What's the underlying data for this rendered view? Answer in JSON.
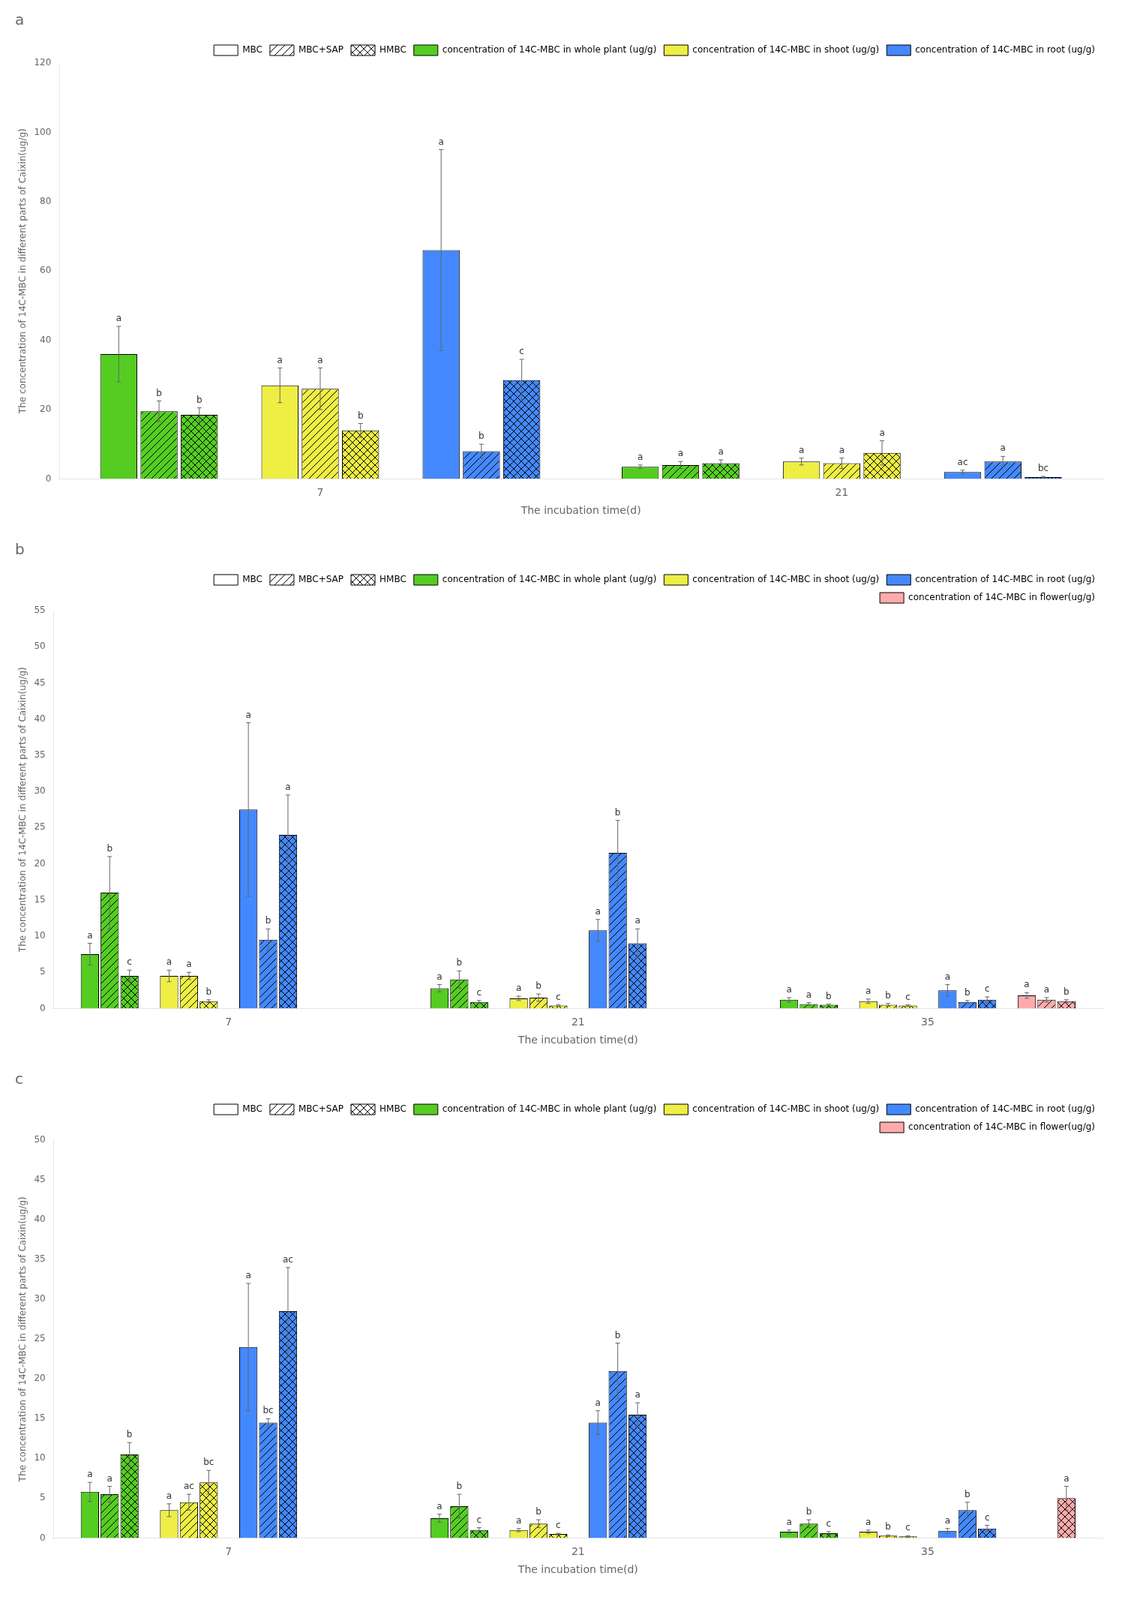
{
  "chart_data": [
    {
      "type": "bar",
      "title": "a",
      "xlabel": "The incubation time(d)",
      "ylabel": "The concentration of 14C-MBC in different parts of Caixin(ug/g)",
      "categories": [
        "7",
        "21"
      ],
      "treatments": [
        "MBC",
        "MBC+SAP",
        "HMBC"
      ],
      "series": [
        {
          "name": "concentration of 14C-MBC in whole plant (ug/g)",
          "color": "#55cc22",
          "values": [
            [
              36.0,
              19.5,
              18.5
            ],
            [
              3.5,
              4.0,
              4.5
            ]
          ],
          "errors": [
            [
              8.0,
              3.0,
              2.0
            ],
            [
              0.5,
              1.0,
              1.0
            ]
          ],
          "letters": [
            [
              "a",
              "b",
              "b"
            ],
            [
              "a",
              "a",
              "a"
            ]
          ]
        },
        {
          "name": "concentration of 14C-MBC in shoot (ug/g)",
          "color": "#eeee44",
          "values": [
            [
              27.0,
              26.0,
              14.0
            ],
            [
              5.0,
              4.5,
              7.5
            ]
          ],
          "errors": [
            [
              5.0,
              6.0,
              2.0
            ],
            [
              1.0,
              1.5,
              3.5
            ]
          ],
          "letters": [
            [
              "a",
              "a",
              "b"
            ],
            [
              "a",
              "a",
              "a"
            ]
          ]
        },
        {
          "name": "concentration of 14C-MBC in root (ug/g)",
          "color": "#4488ff",
          "values": [
            [
              66.0,
              8.0,
              28.5
            ],
            [
              2.0,
              5.0,
              0.5
            ]
          ],
          "errors": [
            [
              29.0,
              2.0,
              6.0
            ],
            [
              0.5,
              1.5,
              0.2
            ]
          ],
          "letters": [
            [
              "a",
              "b",
              "c"
            ],
            [
              "ac",
              "a",
              "bc"
            ]
          ]
        }
      ],
      "ylim": [
        0,
        120
      ],
      "yticks": [
        0,
        20,
        40,
        60,
        80,
        100,
        120
      ],
      "grid": false,
      "legend": "upper right"
    },
    {
      "type": "bar",
      "title": "b",
      "xlabel": "The incubation time(d)",
      "ylabel": "The concentration of 14C-MBC in different parts of Caixin(ug/g)",
      "categories": [
        "7",
        "21",
        "35"
      ],
      "treatments": [
        "MBC",
        "MBC+SAP",
        "HMBC"
      ],
      "series": [
        {
          "name": "concentration of 14C-MBC in whole plant (ug/g)",
          "color": "#55cc22",
          "values": [
            [
              7.5,
              16.0,
              4.5
            ],
            [
              2.8,
              4.0,
              0.9
            ],
            [
              1.2,
              0.6,
              0.5
            ]
          ],
          "errors": [
            [
              1.5,
              5.0,
              0.8
            ],
            [
              0.5,
              1.2,
              0.2
            ],
            [
              0.3,
              0.2,
              0.1
            ]
          ],
          "letters": [
            [
              "a",
              "b",
              "c"
            ],
            [
              "a",
              "b",
              "c"
            ],
            [
              "a",
              "a",
              "b"
            ]
          ]
        },
        {
          "name": "concentration of 14C-MBC in shoot (ug/g)",
          "color": "#eeee44",
          "values": [
            [
              4.5,
              4.5,
              1.0
            ],
            [
              1.4,
              1.5,
              0.4
            ],
            [
              1.0,
              0.5,
              0.4
            ]
          ],
          "errors": [
            [
              0.8,
              0.5,
              0.2
            ],
            [
              0.3,
              0.5,
              0.1
            ],
            [
              0.3,
              0.2,
              0.1
            ]
          ],
          "letters": [
            [
              "a",
              "a",
              "b"
            ],
            [
              "a",
              "b",
              "c"
            ],
            [
              "a",
              "b",
              "c"
            ]
          ]
        },
        {
          "name": "concentration of 14C-MBC in root (ug/g)",
          "color": "#4488ff",
          "values": [
            [
              27.5,
              9.5,
              24.0
            ],
            [
              10.8,
              21.5,
              9.0
            ],
            [
              2.5,
              0.9,
              1.2
            ]
          ],
          "errors": [
            [
              12.0,
              1.5,
              5.5
            ],
            [
              1.5,
              4.5,
              2.0
            ],
            [
              0.8,
              0.2,
              0.4
            ]
          ],
          "letters": [
            [
              "a",
              "b",
              "a"
            ],
            [
              "a",
              "b",
              "a"
            ],
            [
              "a",
              "b",
              "c"
            ]
          ]
        },
        {
          "name": "concentration of 14C-MBC in flower(ug/g)",
          "color": "#ffaaaa",
          "values": [
            [
              null,
              null,
              null
            ],
            [
              null,
              null,
              null
            ],
            [
              1.8,
              1.2,
              1.0
            ]
          ],
          "errors": [
            [
              null,
              null,
              null
            ],
            [
              null,
              null,
              null
            ],
            [
              0.4,
              0.3,
              0.2
            ]
          ],
          "letters": [
            [
              null,
              null,
              null
            ],
            [
              null,
              null,
              null
            ],
            [
              "a",
              "a",
              "b"
            ]
          ]
        }
      ],
      "ylim": [
        0,
        55
      ],
      "yticks": [
        0,
        5,
        10,
        15,
        20,
        25,
        30,
        35,
        40,
        45,
        50,
        55
      ],
      "grid": false,
      "legend": "upper right"
    },
    {
      "type": "bar",
      "title": "c",
      "xlabel": "The incubation time(d)",
      "ylabel": "The concentration of 14C-MBC in different parts of Caixin(ug/g)",
      "categories": [
        "7",
        "21",
        "35"
      ],
      "treatments": [
        "MBC",
        "MBC+SAP",
        "HMBC"
      ],
      "series": [
        {
          "name": "concentration of 14C-MBC in whole plant (ug/g)",
          "color": "#55cc22",
          "values": [
            [
              5.8,
              5.5,
              10.5
            ],
            [
              2.5,
              4.0,
              1.0
            ],
            [
              0.8,
              1.8,
              0.6
            ]
          ],
          "errors": [
            [
              1.2,
              1.0,
              1.5
            ],
            [
              0.5,
              1.5,
              0.3
            ],
            [
              0.2,
              0.5,
              0.2
            ]
          ],
          "letters": [
            [
              "a",
              "a",
              "b"
            ],
            [
              "a",
              "b",
              "c"
            ],
            [
              "a",
              "b",
              "c"
            ]
          ]
        },
        {
          "name": "concentration of 14C-MBC in shoot (ug/g)",
          "color": "#eeee44",
          "values": [
            [
              3.5,
              4.5,
              7.0
            ],
            [
              1.0,
              1.8,
              0.5
            ],
            [
              0.8,
              0.3,
              0.2
            ]
          ],
          "errors": [
            [
              0.8,
              1.0,
              1.5
            ],
            [
              0.2,
              0.5,
              0.1
            ],
            [
              0.2,
              0.1,
              0.1
            ]
          ],
          "letters": [
            [
              "a",
              "ac",
              "bc"
            ],
            [
              "a",
              "b",
              "c"
            ],
            [
              "a",
              "b",
              "c"
            ]
          ]
        },
        {
          "name": "concentration of 14C-MBC in root (ug/g)",
          "color": "#4488ff",
          "values": [
            [
              24.0,
              14.5,
              28.5
            ],
            [
              14.5,
              21.0,
              15.5
            ],
            [
              0.9,
              3.5,
              1.2
            ]
          ],
          "errors": [
            [
              8.0,
              0.5,
              5.5
            ],
            [
              1.5,
              3.5,
              1.5
            ],
            [
              0.3,
              1.0,
              0.4
            ]
          ],
          "letters": [
            [
              "a",
              "bc",
              "ac"
            ],
            [
              "a",
              "b",
              "a"
            ],
            [
              "a",
              "b",
              "c"
            ]
          ]
        },
        {
          "name": "concentration of 14C-MBC in flower(ug/g)",
          "color": "#ffaaaa",
          "values": [
            [
              null,
              null,
              null
            ],
            [
              null,
              null,
              null
            ],
            [
              null,
              null,
              5.0
            ]
          ],
          "errors": [
            [
              null,
              null,
              null
            ],
            [
              null,
              null,
              null
            ],
            [
              null,
              null,
              1.5
            ]
          ],
          "letters": [
            [
              null,
              null,
              null
            ],
            [
              null,
              null,
              null
            ],
            [
              null,
              null,
              "a"
            ]
          ]
        }
      ],
      "ylim": [
        0,
        50
      ],
      "yticks": [
        0,
        5,
        10,
        15,
        20,
        25,
        30,
        35,
        40,
        45,
        50
      ],
      "grid": false,
      "legend": "upper right"
    }
  ]
}
